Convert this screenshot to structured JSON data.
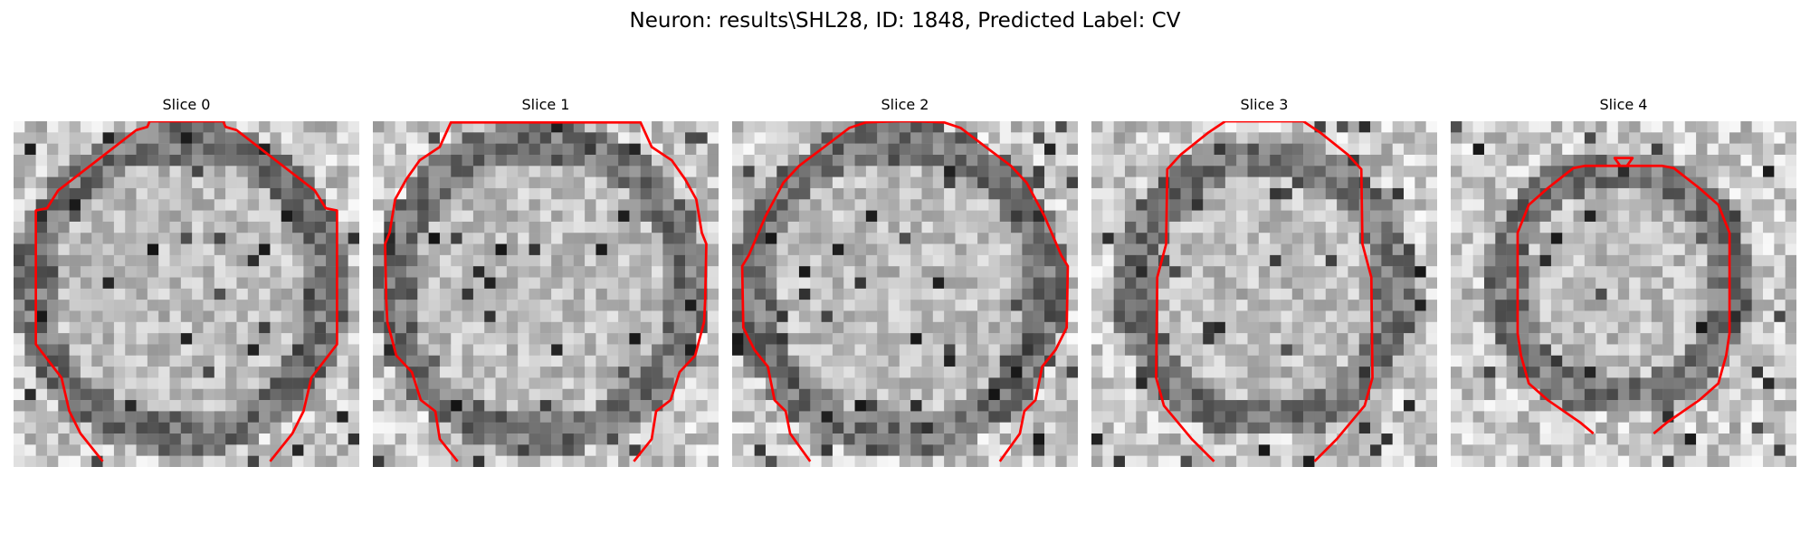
{
  "title": "Neuron: results\\SHL28, ID: 1848, Predicted Label: CV",
  "colors": {
    "contour": "#ff0000",
    "background": "#ffffff"
  },
  "panels": [
    {
      "title": "Slice 0"
    },
    {
      "title": "Slice 1"
    },
    {
      "title": "Slice 2"
    },
    {
      "title": "Slice 3"
    },
    {
      "title": "Slice 4"
    }
  ]
}
